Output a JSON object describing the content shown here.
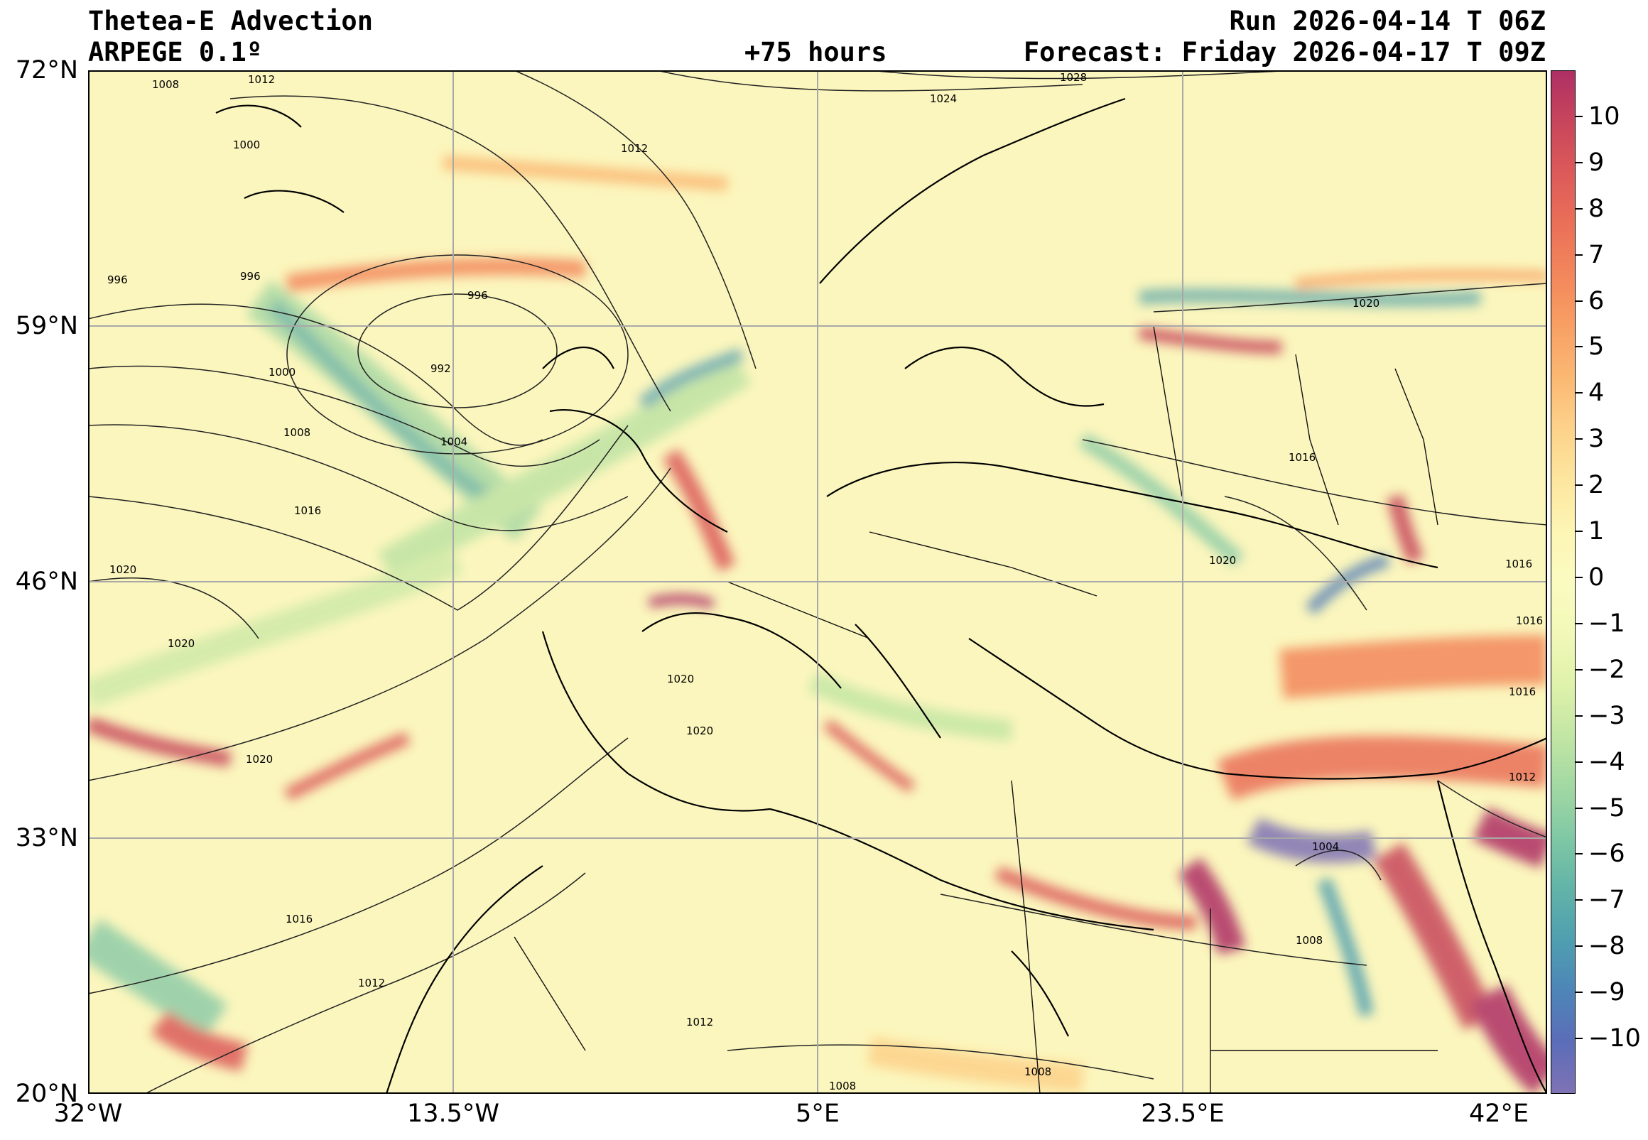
{
  "header": {
    "title": "Thetea-E Advection",
    "model": "ARPEGE 0.1º",
    "run": "Run 2026-04-14 T 06Z",
    "lead": "+75 hours",
    "forecast": "Forecast: Friday 2026-04-17 T 09Z"
  },
  "axes": {
    "lat_labels": [
      "72°N",
      "59°N",
      "46°N",
      "33°N",
      "20°N"
    ],
    "lon_labels": [
      "32°W",
      "13.5°W",
      "5°E",
      "23.5°E",
      "42°E"
    ]
  },
  "colorbar": {
    "labels": [
      "10",
      "9",
      "8",
      "7",
      "6",
      "5",
      "4",
      "3",
      "2",
      "1",
      "0",
      "−1",
      "−2",
      "−3",
      "−4",
      "−5",
      "−6",
      "−7",
      "−8",
      "−9",
      "−10"
    ],
    "colors": [
      "#ae2f65",
      "#c8465b",
      "#dc5a5a",
      "#ea7058",
      "#f3875c",
      "#f8a064",
      "#fbb873",
      "#fdd28a",
      "#fde69f",
      "#fdf5b4",
      "#fbfbc0",
      "#f2f9b8",
      "#dff2ab",
      "#c3e6a4",
      "#a2d8a3",
      "#80c8a5",
      "#62b4a8",
      "#4f9fb0",
      "#4e85b8",
      "#5b6db8",
      "#7f72b5"
    ]
  },
  "pressure_labels": [
    "1008",
    "1012",
    "1028",
    "1024",
    "1000",
    "1012",
    "996",
    "996",
    "996",
    "992",
    "1000",
    "1008",
    "1004",
    "1016",
    "1020",
    "1020",
    "1020",
    "1016",
    "1012",
    "1012",
    "1008",
    "1008",
    "1020",
    "1020",
    "1016",
    "1020",
    "1016",
    "1012",
    "1004",
    "1008",
    "1020",
    "1016",
    "1016"
  ]
}
